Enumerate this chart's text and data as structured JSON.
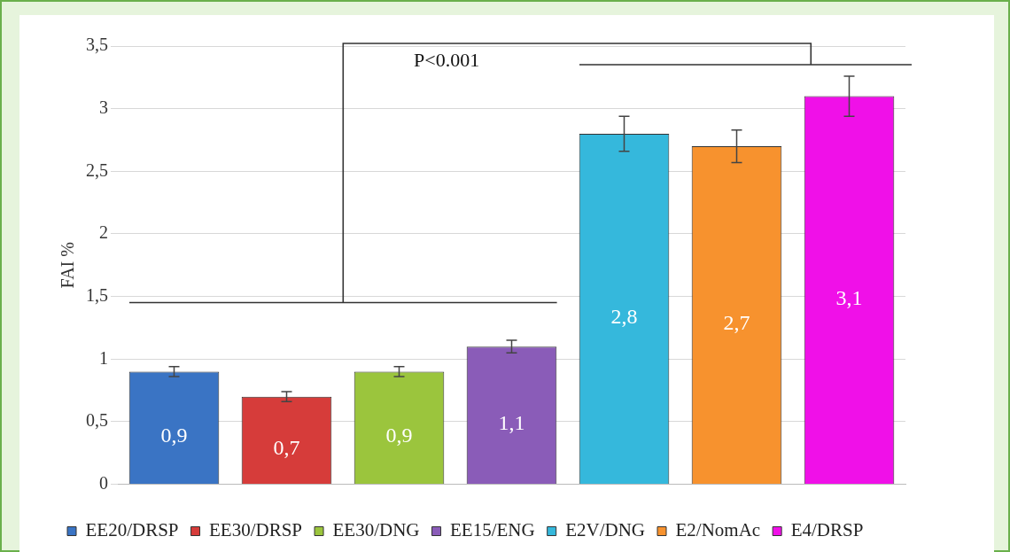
{
  "chart_data": {
    "type": "bar",
    "ylabel": "FAI %",
    "categories": [
      null,
      null,
      null,
      null,
      null,
      null,
      null
    ],
    "series": [
      {
        "name": "EE20/DRSP",
        "color": "#3a74c4",
        "values": [
          0.9,
          null,
          null,
          null,
          null,
          null,
          null
        ],
        "errors": [
          0.04,
          null,
          null,
          null,
          null,
          null,
          null
        ],
        "value_labels": [
          "0,9",
          null,
          null,
          null,
          null,
          null,
          null
        ]
      },
      {
        "name": "EE30/DRSP",
        "color": "#d63c3a",
        "values": [
          null,
          0.7,
          null,
          null,
          null,
          null,
          null
        ],
        "errors": [
          null,
          0.04,
          null,
          null,
          null,
          null,
          null
        ],
        "value_labels": [
          null,
          "0,7",
          null,
          null,
          null,
          null,
          null
        ]
      },
      {
        "name": "EE30/DNG",
        "color": "#9bc53d",
        "values": [
          null,
          null,
          0.9,
          null,
          null,
          null,
          null
        ],
        "errors": [
          null,
          null,
          0.04,
          null,
          null,
          null,
          null
        ],
        "value_labels": [
          null,
          null,
          "0,9",
          null,
          null,
          null,
          null
        ]
      },
      {
        "name": "EE15/ENG",
        "color": "#8a5cb8",
        "values": [
          null,
          null,
          null,
          1.1,
          null,
          null,
          null
        ],
        "errors": [
          null,
          null,
          null,
          0.05,
          null,
          null,
          null
        ],
        "value_labels": [
          null,
          null,
          null,
          "1,1",
          null,
          null,
          null
        ]
      },
      {
        "name": "E2V/DNG",
        "color": "#35b8dc",
        "values": [
          null,
          null,
          null,
          null,
          2.8,
          null,
          null
        ],
        "errors": [
          null,
          null,
          null,
          null,
          0.14,
          null,
          null
        ],
        "value_labels": [
          null,
          null,
          null,
          null,
          "2,8",
          null,
          null
        ]
      },
      {
        "name": "E2/NomAc",
        "color": "#f7922e",
        "values": [
          null,
          null,
          null,
          null,
          null,
          2.7,
          null
        ],
        "errors": [
          null,
          null,
          null,
          null,
          null,
          0.13,
          null
        ],
        "value_labels": [
          null,
          null,
          null,
          null,
          null,
          "2,7",
          null
        ]
      },
      {
        "name": "E4/DRSP",
        "color": "#f010e8",
        "values": [
          null,
          null,
          null,
          null,
          null,
          null,
          3.1
        ],
        "errors": [
          null,
          null,
          null,
          null,
          null,
          null,
          0.16
        ],
        "value_labels": [
          null,
          null,
          null,
          null,
          null,
          null,
          "3,1"
        ]
      }
    ],
    "ylim": [
      0,
      3.5
    ],
    "yticks": [
      0,
      {
        "value": 0.5,
        "label": "0,5"
      },
      1,
      {
        "value": 1.5,
        "label": "1,5"
      },
      2,
      {
        "value": 2.5,
        "label": "2,5"
      },
      3,
      {
        "value": 3.5,
        "label": "3,5"
      }
    ],
    "grid": "y",
    "legend": "bottom",
    "annotations": [
      "P<0.001"
    ]
  }
}
